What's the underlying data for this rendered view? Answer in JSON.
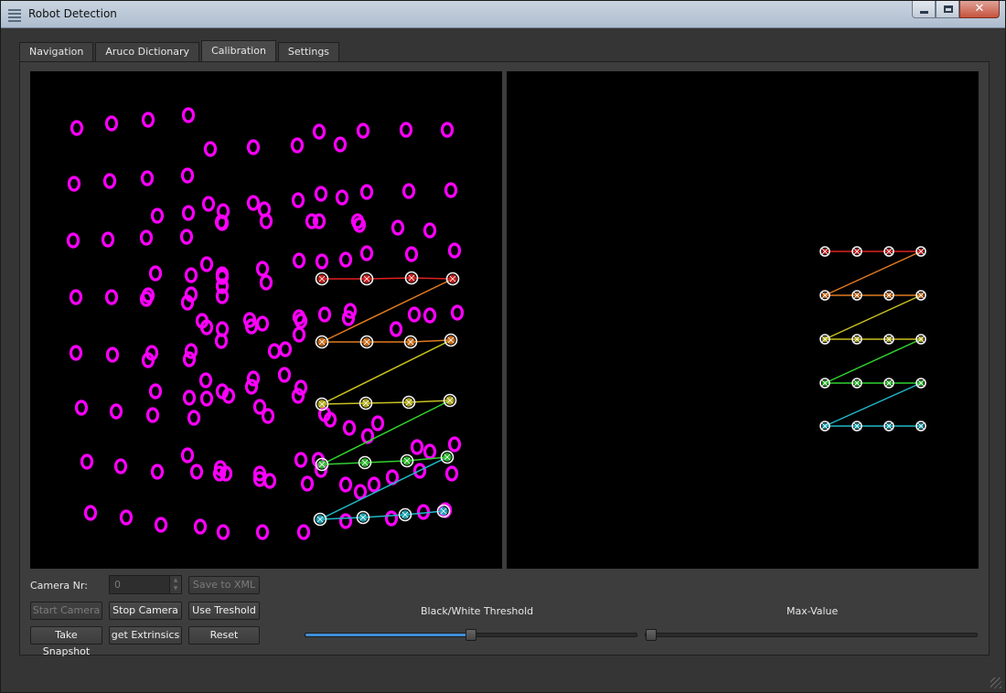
{
  "window": {
    "title": "Robot Detection"
  },
  "tabs": [
    {
      "label": "Navigation"
    },
    {
      "label": "Aruco Dictionary"
    },
    {
      "label": "Calibration",
      "active": true
    },
    {
      "label": "Settings"
    }
  ],
  "controls": {
    "camera_nr_label": "Camera Nr:",
    "camera_nr_value": "0",
    "save_to_xml": "Save to XML",
    "start_camera": "Start Camera",
    "stop_camera": "Stop Camera",
    "use_threshold": "Use Treshold",
    "take_snapshot": "Take Snapshot",
    "get_extrinsics": "get Extrinsics",
    "reset": "Reset"
  },
  "sliders": {
    "bw_threshold": {
      "label": "Black/White Threshold",
      "value_fraction": 0.5
    },
    "max_value": {
      "label": "Max-Value",
      "value_fraction": 0.0
    }
  },
  "colors": {
    "dot": "#ff00ff",
    "rows": [
      "#e02020",
      "#e07a20",
      "#c8c020",
      "#30d030",
      "#20b8c8"
    ],
    "accent": "#3f8fd8"
  }
}
